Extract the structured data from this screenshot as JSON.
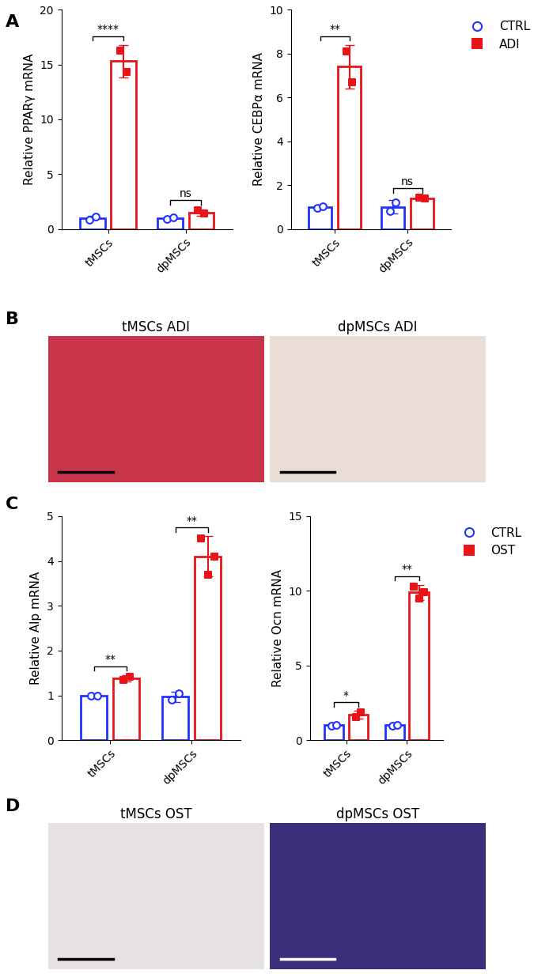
{
  "panel_labels": [
    "A",
    "B",
    "C",
    "D"
  ],
  "chart_data": [
    {
      "type": "bar",
      "ylabel": "Relative PPARγ mRNA",
      "categories": [
        "tMSCs",
        "dpMSCs"
      ],
      "ylim": [
        0,
        20
      ],
      "yticks": [
        0,
        5,
        10,
        15,
        20
      ],
      "series": [
        {
          "name": "CTRL",
          "color": "#2233ff",
          "marker": "circle",
          "values": [
            1.0,
            1.0
          ],
          "errors": [
            0.2,
            0.1
          ],
          "points": [
            [
              0.85,
              1.15
            ],
            [
              0.9,
              1.05
            ]
          ]
        },
        {
          "name": "ADI",
          "color": "#e8141a",
          "marker": "square",
          "values": [
            15.3,
            1.5
          ],
          "errors": [
            1.5,
            0.3
          ],
          "points": [
            [
              16.3,
              14.3
            ],
            [
              1.7,
              1.4
            ]
          ]
        }
      ],
      "significance": [
        "****",
        "ns"
      ]
    },
    {
      "type": "bar",
      "ylabel": "Relative CEBPα mRNA",
      "categories": [
        "tMSCs",
        "dpMSCs"
      ],
      "ylim": [
        0,
        10
      ],
      "yticks": [
        0,
        2,
        4,
        6,
        8,
        10
      ],
      "legend": "upper left",
      "series": [
        {
          "name": "CTRL",
          "color": "#2233ff",
          "marker": "circle",
          "values": [
            1.0,
            1.0
          ],
          "errors": [
            0.05,
            0.3
          ],
          "points": [
            [
              0.97,
              1.03
            ],
            [
              0.8,
              1.2
            ]
          ]
        },
        {
          "name": "ADI",
          "color": "#e8141a",
          "marker": "square",
          "values": [
            7.4,
            1.4
          ],
          "errors": [
            1.0,
            0.05
          ],
          "points": [
            [
              8.1,
              6.7
            ],
            [
              1.42,
              1.38
            ]
          ]
        }
      ],
      "significance": [
        "**",
        "ns"
      ]
    },
    {
      "type": "bar",
      "ylabel": "Relative Alp mRNA",
      "categories": [
        "tMSCs",
        "dpMSCs"
      ],
      "ylim": [
        0,
        5
      ],
      "yticks": [
        0,
        1,
        2,
        3,
        4,
        5
      ],
      "series": [
        {
          "name": "CTRL",
          "color": "#2233ff",
          "marker": "circle",
          "values": [
            1.0,
            0.97
          ],
          "errors": [
            0.02,
            0.12
          ],
          "points": [
            [
              1.0,
              1.0
            ],
            [
              0.9,
              1.05
            ]
          ]
        },
        {
          "name": "OST",
          "color": "#e8141a",
          "marker": "square",
          "values": [
            1.38,
            4.1
          ],
          "errors": [
            0.07,
            0.45
          ],
          "points": [
            [
              1.35,
              1.42
            ],
            [
              4.5,
              3.7,
              4.1
            ]
          ]
        }
      ],
      "significance": [
        "**",
        "**"
      ]
    },
    {
      "type": "bar",
      "ylabel": "Relative Ocn mRNA",
      "categories": [
        "tMSCs",
        "dpMSCs"
      ],
      "ylim": [
        0,
        15
      ],
      "yticks": [
        0,
        5,
        10,
        15
      ],
      "legend": "upper left",
      "series": [
        {
          "name": "CTRL",
          "color": "#2233ff",
          "marker": "circle",
          "values": [
            1.0,
            1.0
          ],
          "errors": [
            0.05,
            0.05
          ],
          "points": [
            [
              0.98,
              1.02
            ],
            [
              0.98,
              1.02
            ]
          ]
        },
        {
          "name": "OST",
          "color": "#e8141a",
          "marker": "square",
          "values": [
            1.7,
            9.9
          ],
          "errors": [
            0.25,
            0.5
          ],
          "points": [
            [
              1.55,
              1.85
            ],
            [
              10.3,
              9.5,
              9.9
            ]
          ]
        }
      ],
      "significance": [
        "*",
        "**"
      ]
    }
  ],
  "images": [
    {
      "labels": [
        "tMSCs ADI",
        "dpMSCs ADI"
      ]
    },
    {
      "labels": [
        "tMSCs OST",
        "dpMSCs OST"
      ]
    }
  ]
}
